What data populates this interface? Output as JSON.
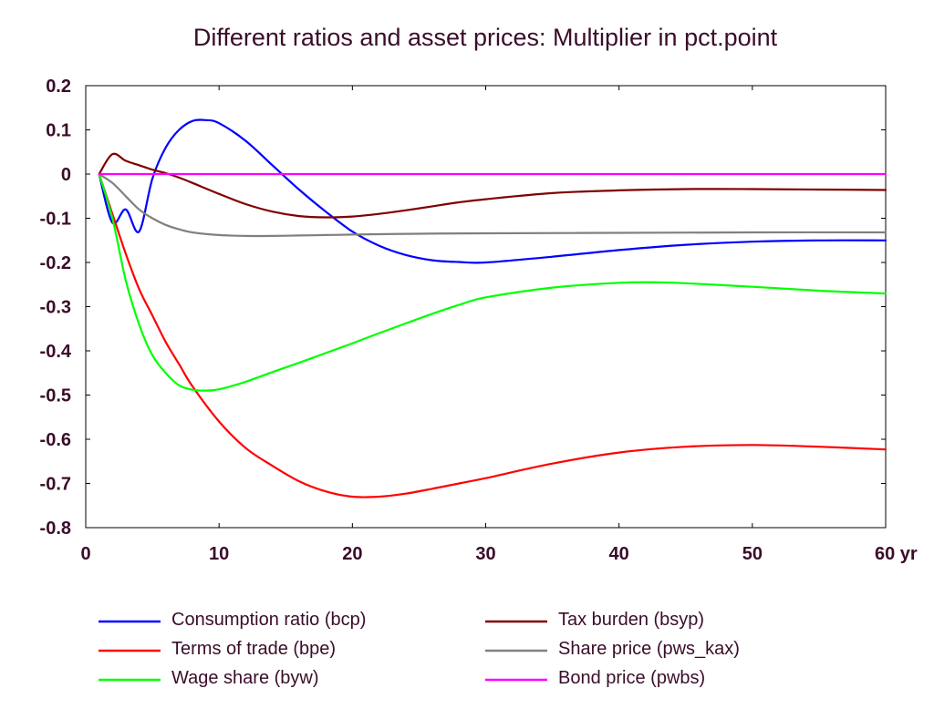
{
  "chart_data": {
    "type": "line",
    "title": "Different ratios and asset prices: Multiplier in pct.point",
    "xlabel": "",
    "ylabel": "",
    "x_unit_label": "yr",
    "xlim": [
      0,
      60
    ],
    "ylim": [
      -0.8,
      0.2
    ],
    "x_ticks": [
      0,
      10,
      20,
      30,
      40,
      50,
      60
    ],
    "x_tick_labels": [
      "0",
      "10",
      "20",
      "30",
      "40",
      "50",
      "60 yr"
    ],
    "y_ticks": [
      0.2,
      0.1,
      0,
      -0.1,
      -0.2,
      -0.3,
      -0.4,
      -0.5,
      -0.6,
      -0.7,
      -0.8
    ],
    "y_tick_labels": [
      "0.2",
      "0.1",
      "0",
      "-0.1",
      "-0.2",
      "-0.3",
      "-0.4",
      "-0.5",
      "-0.6",
      "-0.7",
      "-0.8"
    ],
    "grid": false,
    "legend_position": "bottom",
    "series": [
      {
        "name": "Consumption ratio (bcp)",
        "color": "#0000ff",
        "x": [
          1,
          2,
          3,
          4,
          5,
          6,
          7,
          8,
          9,
          10,
          12,
          14,
          16,
          18,
          20,
          22,
          24,
          26,
          28,
          30,
          35,
          40,
          45,
          50,
          55,
          60
        ],
        "y": [
          0,
          -0.11,
          -0.08,
          -0.13,
          -0.01,
          0.06,
          0.1,
          0.12,
          0.122,
          0.115,
          0.075,
          0.02,
          -0.035,
          -0.085,
          -0.13,
          -0.162,
          -0.183,
          -0.195,
          -0.199,
          -0.2,
          -0.187,
          -0.172,
          -0.16,
          -0.153,
          -0.15,
          -0.15
        ]
      },
      {
        "name": "Terms of trade (bpe)",
        "color": "#ff0000",
        "x": [
          1,
          2,
          3,
          4,
          5,
          6,
          7,
          8,
          10,
          12,
          14,
          16,
          18,
          20,
          22,
          24,
          26,
          28,
          30,
          35,
          40,
          45,
          50,
          55,
          60
        ],
        "y": [
          0,
          -0.09,
          -0.18,
          -0.26,
          -0.32,
          -0.38,
          -0.43,
          -0.48,
          -0.56,
          -0.62,
          -0.66,
          -0.695,
          -0.718,
          -0.73,
          -0.73,
          -0.723,
          -0.712,
          -0.7,
          -0.688,
          -0.655,
          -0.63,
          -0.617,
          -0.613,
          -0.617,
          -0.623
        ]
      },
      {
        "name": "Wage share (byw)",
        "color": "#00ff00",
        "x": [
          1,
          2,
          3,
          4,
          5,
          6,
          7,
          8,
          9,
          10,
          12,
          14,
          16,
          18,
          20,
          22,
          24,
          26,
          28,
          30,
          35,
          40,
          43,
          45,
          50,
          55,
          60
        ],
        "y": [
          0,
          -0.1,
          -0.24,
          -0.34,
          -0.41,
          -0.45,
          -0.478,
          -0.488,
          -0.49,
          -0.487,
          -0.47,
          -0.448,
          -0.427,
          -0.405,
          -0.383,
          -0.36,
          -0.338,
          -0.316,
          -0.296,
          -0.279,
          -0.257,
          -0.246,
          -0.245,
          -0.247,
          -0.255,
          -0.264,
          -0.27
        ]
      },
      {
        "name": "Tax burden (bsyp)",
        "color": "#800000",
        "x": [
          1,
          2,
          3,
          4,
          5,
          6,
          7,
          8,
          10,
          12,
          14,
          16,
          18,
          20,
          22,
          24,
          26,
          28,
          30,
          35,
          40,
          45,
          50,
          55,
          60
        ],
        "y": [
          0,
          0.045,
          0.03,
          0.02,
          0.01,
          0.002,
          -0.008,
          -0.02,
          -0.045,
          -0.068,
          -0.085,
          -0.095,
          -0.098,
          -0.096,
          -0.09,
          -0.082,
          -0.073,
          -0.064,
          -0.057,
          -0.043,
          -0.037,
          -0.034,
          -0.034,
          -0.035,
          -0.036
        ]
      },
      {
        "name": "Share price (pws_kax)",
        "color": "#808080",
        "x": [
          1,
          2,
          3,
          4,
          5,
          6,
          7,
          8,
          10,
          12,
          14,
          16,
          18,
          20,
          25,
          30,
          40,
          50,
          60
        ],
        "y": [
          0,
          -0.02,
          -0.05,
          -0.08,
          -0.1,
          -0.115,
          -0.125,
          -0.132,
          -0.138,
          -0.14,
          -0.14,
          -0.139,
          -0.138,
          -0.137,
          -0.135,
          -0.134,
          -0.133,
          -0.132,
          -0.132
        ]
      },
      {
        "name": "Bond price (pwbs)",
        "color": "#ff00ff",
        "x": [
          1,
          60
        ],
        "y": [
          0,
          0
        ]
      }
    ]
  }
}
